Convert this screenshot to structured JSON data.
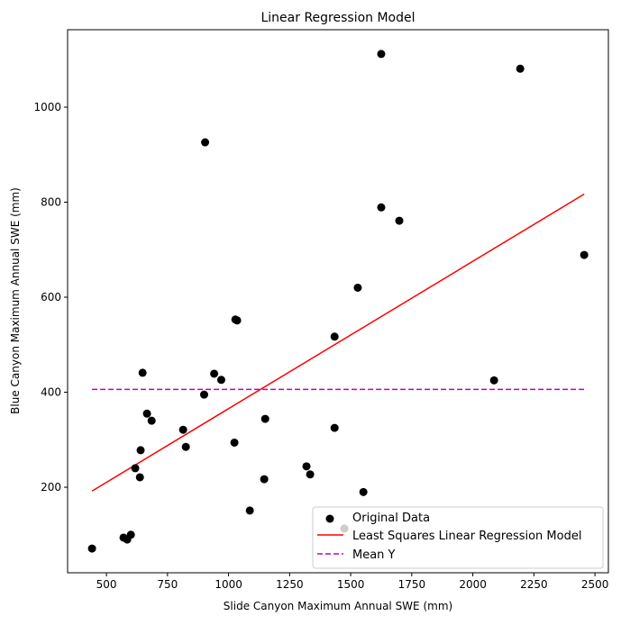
{
  "chart_data": {
    "type": "scatter",
    "title": "Linear Regression Model",
    "xlabel": "Slide Canyon Maximum Annual SWE (mm)",
    "ylabel": "Blue Canyon Maximum Annual SWE (mm)",
    "xlim": [
      341,
      2555
    ],
    "ylim": [
      20,
      1163
    ],
    "xticks": [
      500,
      750,
      1000,
      1250,
      1500,
      1750,
      2000,
      2250,
      2500
    ],
    "yticks": [
      200,
      400,
      600,
      800,
      1000
    ],
    "grid": false,
    "legend_placement": "lower-right",
    "series": [
      {
        "name": "Original Data",
        "kind": "scatter",
        "color": "#000000",
        "x": [
          441,
          570,
          585,
          600,
          618,
          637,
          640,
          648,
          666,
          685,
          814,
          825,
          900,
          904,
          941,
          970,
          1024,
          1028,
          1035,
          1087,
          1146,
          1150,
          1319,
          1334,
          1434,
          1434,
          1474,
          1529,
          1552,
          1625,
          1625,
          1699,
          2087,
          2194,
          2456
        ],
        "y": [
          71,
          94,
          90,
          100,
          240,
          221,
          278,
          441,
          355,
          340,
          321,
          285,
          395,
          926,
          439,
          426,
          294,
          553,
          551,
          151,
          217,
          344,
          244,
          227,
          517,
          325,
          113,
          620,
          190,
          789,
          1112,
          761,
          425,
          1081,
          689
        ]
      },
      {
        "name": "Least Squares Linear Regression Model",
        "kind": "line",
        "color": "#ff0000",
        "x": [
          441,
          2456
        ],
        "y": [
          192,
          817
        ]
      },
      {
        "name": "Mean Y",
        "kind": "dashed-line",
        "color": "#bf00bf",
        "x": [
          441,
          2456
        ],
        "y": [
          406,
          406
        ]
      }
    ]
  }
}
